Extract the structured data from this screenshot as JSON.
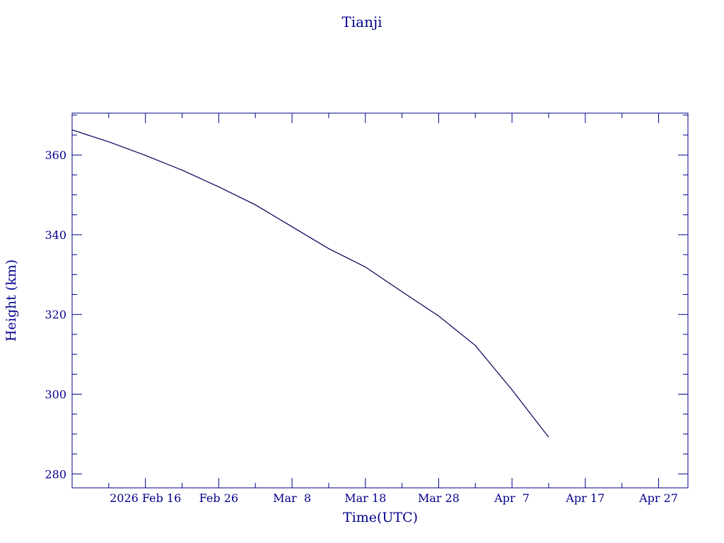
{
  "chart_data": {
    "type": "line",
    "title": "Tianji",
    "xlabel": "Time(UTC)",
    "ylabel": "Height (km)",
    "xlim": [
      "2026-02-06",
      "2026-05-01"
    ],
    "ylim": [
      276.5,
      370.5
    ],
    "x_ticks": [
      {
        "date": "2026-02-16",
        "label": "2026 Feb 16"
      },
      {
        "date": "2026-02-26",
        "label": "Feb 26"
      },
      {
        "date": "2026-03-08",
        "label": "Mar  8"
      },
      {
        "date": "2026-03-18",
        "label": "Mar 18"
      },
      {
        "date": "2026-03-28",
        "label": "Mar 28"
      },
      {
        "date": "2026-04-07",
        "label": "Apr  7"
      },
      {
        "date": "2026-04-17",
        "label": "Apr 17"
      },
      {
        "date": "2026-04-27",
        "label": "Apr 27"
      }
    ],
    "y_ticks": [
      280,
      300,
      320,
      340,
      360
    ],
    "grid": false,
    "colors": {
      "line": "#00005a",
      "frame": "#00008b",
      "text": "#00008b"
    },
    "series": [
      {
        "x": [
          "2026-02-06",
          "2026-02-11",
          "2026-02-16",
          "2026-02-21",
          "2026-02-26",
          "2026-03-03",
          "2026-03-08",
          "2026-03-13",
          "2026-03-18",
          "2026-03-23",
          "2026-03-28",
          "2026-04-02",
          "2026-04-07",
          "2026-04-12"
        ],
        "y": [
          366.3,
          363.3,
          359.9,
          356.2,
          352.0,
          347.5,
          342.0,
          336.5,
          331.9,
          325.7,
          319.6,
          312.2,
          301.1,
          289.2
        ]
      }
    ]
  }
}
